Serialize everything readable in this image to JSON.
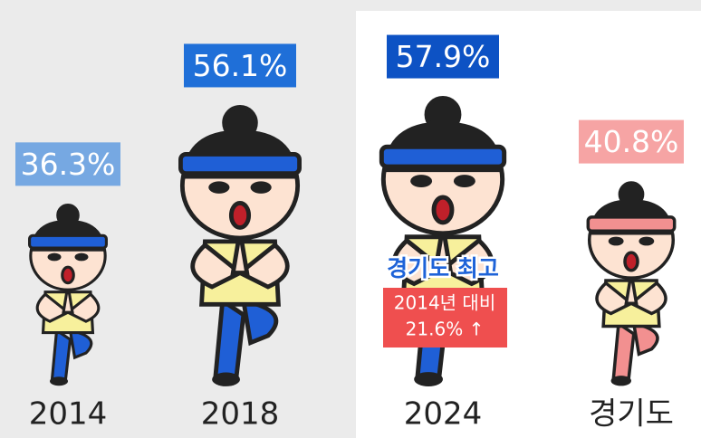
{
  "chart_data": {
    "type": "pictogram",
    "categories": [
      "2014",
      "2018",
      "2024",
      "경기도"
    ],
    "values": [
      36.3,
      56.1,
      57.9,
      40.8
    ],
    "value_labels": [
      "36.3%",
      "56.1%",
      "57.9%",
      "40.8%"
    ],
    "colors": [
      "#76a8e2",
      "#1f6fd8",
      "#0d52c4",
      "#f6a4a4"
    ],
    "accent_colors": [
      "#1f5fd6",
      "#1f5fd6",
      "#1f5fd6",
      "#f29090"
    ],
    "annotations": {
      "highlight": "경기도 최고",
      "change_label": "2014년 대비",
      "change": "21.6% ↑"
    }
  }
}
